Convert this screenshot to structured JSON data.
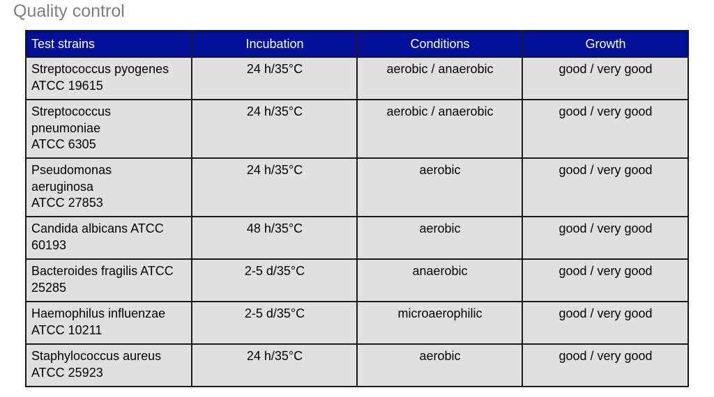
{
  "heading": "Quality control",
  "table": {
    "headers": [
      "Test strains",
      "Incubation",
      "Conditions",
      "Growth"
    ],
    "rows": [
      {
        "strain_lines": [
          "Streptococcus pyogenes",
          "ATCC 19615"
        ],
        "incubation": "24 h/35°C",
        "conditions": "aerobic / anaerobic",
        "growth": "good / very good"
      },
      {
        "strain_lines": [
          "Streptococcus",
          "pneumoniae",
          "ATCC 6305"
        ],
        "incubation": "24 h/35°C",
        "conditions": "aerobic / anaerobic",
        "growth": "good / very good"
      },
      {
        "strain_lines": [
          "Pseudomonas",
          "aeruginosa",
          "ATCC 27853"
        ],
        "incubation": "24 h/35°C",
        "conditions": "aerobic",
        "growth": "good / very good"
      },
      {
        "strain_lines": [
          "Candida albicans ATCC",
          "60193"
        ],
        "incubation": "48 h/35°C",
        "conditions": "aerobic",
        "growth": "good / very good"
      },
      {
        "strain_lines": [
          "Bacteroides fragilis ATCC",
          "25285"
        ],
        "incubation": "2-5 d/35°C",
        "conditions": "anaerobic",
        "growth": "good / very good"
      },
      {
        "strain_lines": [
          "Haemophilus influenzae",
          "ATCC 10211"
        ],
        "incubation": "2-5 d/35°C",
        "conditions": "microaerophilic",
        "growth": "good / very good"
      },
      {
        "strain_lines": [
          "Staphylococcus aureus",
          "ATCC 25923"
        ],
        "incubation": "24 h/35°C",
        "conditions": "aerobic",
        "growth": "good / very good"
      }
    ]
  },
  "colors": {
    "header_bg": "#000f99",
    "header_text": "#ffffff",
    "cell_bg": "#e0e0e0",
    "heading_text": "#7f7f7f"
  }
}
